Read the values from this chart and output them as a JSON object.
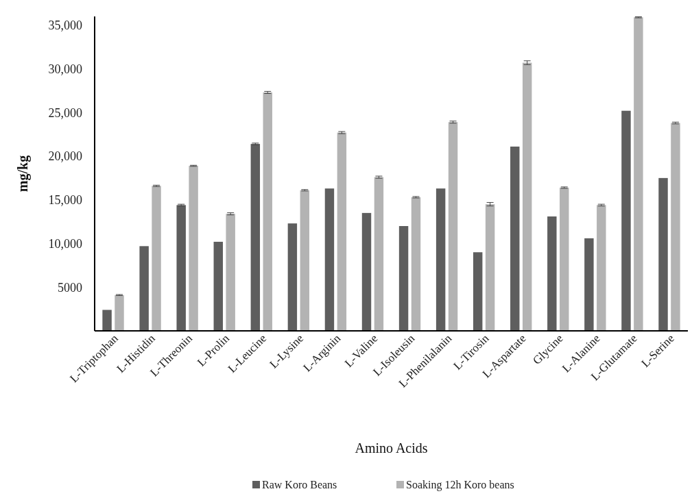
{
  "chart_data": {
    "type": "bar",
    "xlabel": "Amino Acids",
    "ylabel": "mg/kg",
    "categories": [
      "L-Triptophan",
      "L-Histidin",
      "L-Threonin",
      "L-Prolin",
      "L-Leucine",
      "L-Lysine",
      "L-Arginin",
      "L-Valine",
      "L-Isoleusin",
      "L-Phenilalanin",
      "L-Tirosin",
      "L-Aspartate",
      "Glycine",
      "L-Alanine",
      "L-Glutamate",
      "L-Serine"
    ],
    "series": [
      {
        "name": "Raw Koro Beans",
        "color": "#5e5e5e",
        "values": [
          2400,
          9700,
          14400,
          10200,
          21400,
          12300,
          16300,
          13500,
          12000,
          16300,
          9000,
          21100,
          13100,
          10600,
          25200,
          17500
        ],
        "errors": [
          null,
          null,
          100,
          null,
          100,
          null,
          null,
          null,
          null,
          null,
          null,
          null,
          null,
          null,
          null,
          null
        ]
      },
      {
        "name": "Soaking 12h Koro beans",
        "color": "#b3b3b3",
        "values": [
          4100,
          16600,
          18900,
          13400,
          27300,
          16100,
          22700,
          17600,
          15300,
          23900,
          14500,
          30700,
          16400,
          14400,
          35900,
          23800
        ],
        "errors": [
          60,
          80,
          60,
          120,
          120,
          80,
          120,
          120,
          80,
          120,
          200,
          220,
          80,
          100,
          60,
          100
        ]
      }
    ],
    "ylim": [
      0,
      36000
    ],
    "yticks": [
      {
        "value": 5000,
        "label": "5000"
      },
      {
        "value": 10000,
        "label": "10,000"
      },
      {
        "value": 15000,
        "label": "15,000"
      },
      {
        "value": 20000,
        "label": "20,000"
      },
      {
        "value": 25000,
        "label": "25,000"
      },
      {
        "value": 30000,
        "label": "30,000"
      },
      {
        "value": 35000,
        "label": "35,000"
      }
    ],
    "grid": false,
    "legend": "bottom"
  }
}
